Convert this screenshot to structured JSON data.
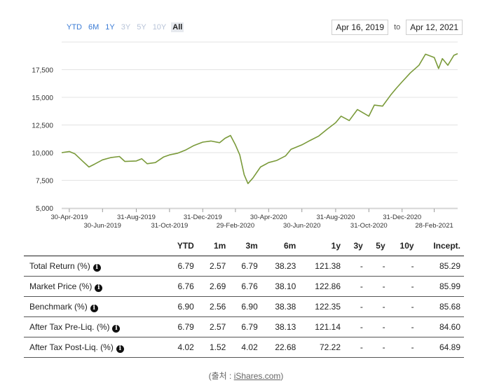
{
  "range_tabs": [
    {
      "label": "YTD",
      "state": "enabled"
    },
    {
      "label": "6M",
      "state": "enabled"
    },
    {
      "label": "1Y",
      "state": "enabled"
    },
    {
      "label": "3Y",
      "state": "disabled"
    },
    {
      "label": "5Y",
      "state": "disabled"
    },
    {
      "label": "10Y",
      "state": "disabled"
    },
    {
      "label": "All",
      "state": "active"
    }
  ],
  "date_range": {
    "from": "Apr 16, 2019",
    "separator": "to",
    "to": "Apr 12, 2021"
  },
  "colors": {
    "line": "#7a9a3a",
    "grid": "#e3e3e3",
    "link": "#3a7bd5"
  },
  "chart_data": {
    "type": "line",
    "title": "",
    "xlabel": "",
    "ylabel": "",
    "grid": true,
    "ylim": [
      5000,
      20000
    ],
    "y_ticks": [
      "5,000",
      "7,500",
      "10,000",
      "12,500",
      "15,000",
      "17,500"
    ],
    "y_tick_values": [
      5000,
      7500,
      10000,
      12500,
      15000,
      17500
    ],
    "x_ticks_row1": [
      "30-Apr-2019",
      "31-Aug-2019",
      "31-Dec-2019",
      "30-Apr-2020",
      "31-Aug-2020",
      "31-Dec-2020"
    ],
    "x_ticks_row1_dates": [
      "2019-04-30",
      "2019-08-31",
      "2019-12-31",
      "2020-04-30",
      "2020-08-31",
      "2020-12-31"
    ],
    "x_ticks_row2": [
      "30-Jun-2019",
      "31-Oct-2019",
      "29-Feb-2020",
      "30-Jun-2020",
      "31-Oct-2020",
      "28-Feb-2021"
    ],
    "x_ticks_row2_dates": [
      "2019-06-30",
      "2019-10-31",
      "2020-02-29",
      "2020-06-30",
      "2020-10-31",
      "2021-02-28"
    ],
    "x_range": [
      "2019-04-16",
      "2021-04-12"
    ],
    "series": [
      {
        "values": [
          [
            "2019-04-16",
            10000
          ],
          [
            "2019-04-30",
            10100
          ],
          [
            "2019-05-10",
            9900
          ],
          [
            "2019-05-25",
            9200
          ],
          [
            "2019-06-05",
            8700
          ],
          [
            "2019-06-15",
            8950
          ],
          [
            "2019-06-30",
            9350
          ],
          [
            "2019-07-15",
            9550
          ],
          [
            "2019-07-31",
            9650
          ],
          [
            "2019-08-10",
            9200
          ],
          [
            "2019-08-31",
            9250
          ],
          [
            "2019-09-10",
            9450
          ],
          [
            "2019-09-20",
            9000
          ],
          [
            "2019-10-05",
            9100
          ],
          [
            "2019-10-20",
            9600
          ],
          [
            "2019-10-31",
            9800
          ],
          [
            "2019-11-15",
            9950
          ],
          [
            "2019-11-30",
            10250
          ],
          [
            "2019-12-15",
            10650
          ],
          [
            "2019-12-31",
            10950
          ],
          [
            "2020-01-15",
            11050
          ],
          [
            "2020-01-31",
            10900
          ],
          [
            "2020-02-10",
            11300
          ],
          [
            "2020-02-20",
            11550
          ],
          [
            "2020-02-29",
            10700
          ],
          [
            "2020-03-08",
            9800
          ],
          [
            "2020-03-16",
            8000
          ],
          [
            "2020-03-23",
            7200
          ],
          [
            "2020-04-01",
            7700
          ],
          [
            "2020-04-15",
            8700
          ],
          [
            "2020-04-30",
            9100
          ],
          [
            "2020-05-15",
            9300
          ],
          [
            "2020-05-31",
            9700
          ],
          [
            "2020-06-10",
            10300
          ],
          [
            "2020-06-30",
            10700
          ],
          [
            "2020-07-15",
            11100
          ],
          [
            "2020-07-31",
            11500
          ],
          [
            "2020-08-15",
            12100
          ],
          [
            "2020-08-31",
            12700
          ],
          [
            "2020-09-10",
            13300
          ],
          [
            "2020-09-25",
            12900
          ],
          [
            "2020-10-10",
            13900
          ],
          [
            "2020-10-31",
            13300
          ],
          [
            "2020-11-10",
            14300
          ],
          [
            "2020-11-25",
            14200
          ],
          [
            "2020-12-10",
            15200
          ],
          [
            "2020-12-20",
            15800
          ],
          [
            "2020-12-31",
            16400
          ],
          [
            "2021-01-15",
            17200
          ],
          [
            "2021-01-31",
            17900
          ],
          [
            "2021-02-12",
            18900
          ],
          [
            "2021-02-28",
            18600
          ],
          [
            "2021-03-08",
            17600
          ],
          [
            "2021-03-15",
            18500
          ],
          [
            "2021-03-25",
            17900
          ],
          [
            "2021-04-05",
            18800
          ],
          [
            "2021-04-12",
            18950
          ]
        ]
      }
    ]
  },
  "table": {
    "headers": [
      "",
      "YTD",
      "1m",
      "3m",
      "6m",
      "1y",
      "3y",
      "5y",
      "10y",
      "Incept."
    ],
    "rows": [
      {
        "label": "Total Return (%)",
        "values": [
          "6.79",
          "2.57",
          "6.79",
          "38.23",
          "121.38",
          "-",
          "-",
          "-",
          "85.29"
        ]
      },
      {
        "label": "Market Price (%)",
        "values": [
          "6.76",
          "2.69",
          "6.76",
          "38.10",
          "122.86",
          "-",
          "-",
          "-",
          "85.99"
        ]
      },
      {
        "label": "Benchmark (%)",
        "values": [
          "6.90",
          "2.56",
          "6.90",
          "38.38",
          "122.35",
          "-",
          "-",
          "-",
          "85.68"
        ]
      },
      {
        "label": "After Tax Pre-Liq. (%)",
        "values": [
          "6.79",
          "2.57",
          "6.79",
          "38.13",
          "121.14",
          "-",
          "-",
          "-",
          "84.60"
        ]
      },
      {
        "label": "After Tax Post-Liq. (%)",
        "values": [
          "4.02",
          "1.52",
          "4.02",
          "22.68",
          "72.22",
          "-",
          "-",
          "-",
          "64.89"
        ]
      }
    ],
    "info_icon": "info-icon"
  },
  "source": {
    "prefix": "(출처 : ",
    "link": "iShares.com",
    "suffix": ")"
  }
}
